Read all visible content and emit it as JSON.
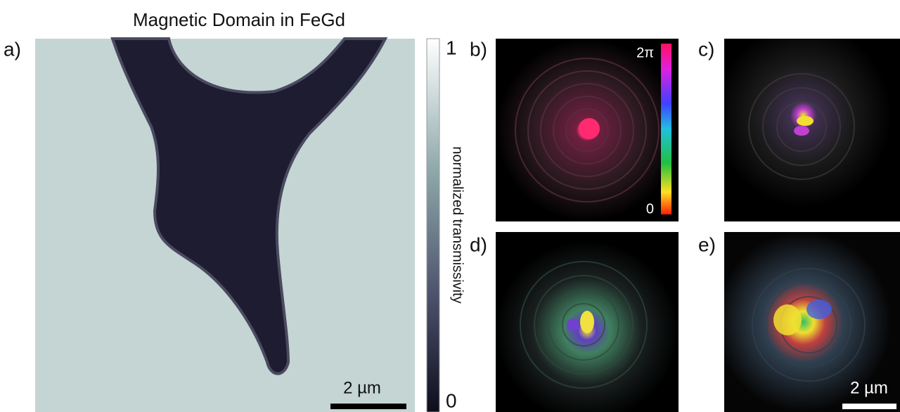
{
  "title": "Magnetic Domain in FeGd",
  "panels": {
    "a": "a)",
    "b": "b)",
    "c": "c)",
    "d": "d)",
    "e": "e)"
  },
  "transmissivity_colorbar": {
    "label": "normalized transmissivity",
    "top": "1",
    "bottom": "0"
  },
  "phase_colorbar": {
    "top": "2π",
    "bottom": "0"
  },
  "scale_bars": {
    "a": "2 µm",
    "e": "2 µm"
  }
}
